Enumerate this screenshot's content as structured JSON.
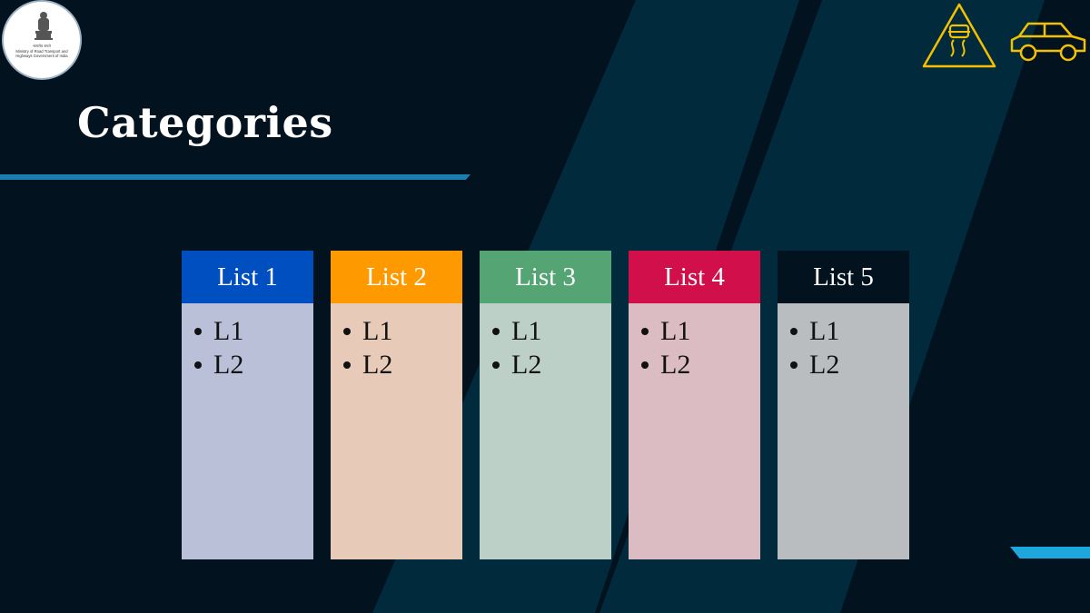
{
  "slide": {
    "title": "Categories",
    "logo": {
      "hindi_text": "सत्यमेव जयते",
      "org_text": "Ministry of Road Transport and Highways Government of India"
    },
    "icons": [
      "slippery-road-warning-icon",
      "car-icon"
    ],
    "colors": {
      "background": "#03121f",
      "accent": "#1b7fae",
      "icon_stroke": "#f2c100"
    }
  },
  "lists": [
    {
      "label": "List 1",
      "header_color": "#004fc0",
      "body_color": "#b9c0d8",
      "items": [
        "L1",
        "L2"
      ]
    },
    {
      "label": "List 2",
      "header_color": "#ff9900",
      "body_color": "#e8cab9",
      "items": [
        "L1",
        "L2"
      ]
    },
    {
      "label": "List 3",
      "header_color": "#55a574",
      "body_color": "#bdd0c8",
      "items": [
        "L1",
        "L2"
      ]
    },
    {
      "label": "List 4",
      "header_color": "#d10f4a",
      "body_color": "#dbbcc3",
      "items": [
        "L1",
        "L2"
      ]
    },
    {
      "label": "List 5",
      "header_color": "#03121f",
      "body_color": "#b9bdbf",
      "items": [
        "L1",
        "L2"
      ]
    }
  ]
}
